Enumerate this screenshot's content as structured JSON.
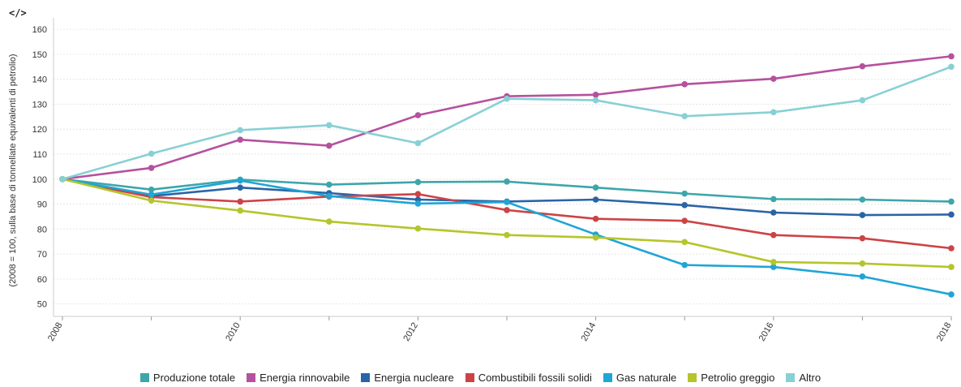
{
  "toolbar": {
    "code_icon": "</>"
  },
  "chart_data": {
    "type": "line",
    "ylabel": "(2008 = 100, sulla base di tonnellate equivalenti di petrolio)",
    "xlabel": "",
    "x": [
      2008,
      2009,
      2010,
      2011,
      2012,
      2013,
      2014,
      2015,
      2016,
      2017,
      2018
    ],
    "x_tick_labels": [
      "2008",
      "2010",
      "2012",
      "2014",
      "2016",
      "2018"
    ],
    "y_ticks": [
      50,
      60,
      70,
      80,
      90,
      100,
      110,
      120,
      130,
      140,
      150,
      160
    ],
    "ylim": [
      45,
      162
    ],
    "grid": true,
    "legend_position": "bottom",
    "series": [
      {
        "name": "Produzione totale",
        "color": "#3ea6aa",
        "values": [
          100,
          95.8,
          99.8,
          97.8,
          98.8,
          99.0,
          96.6,
          94.2,
          92.0,
          91.8,
          91.0
        ]
      },
      {
        "name": "Energia rinnovabile",
        "color": "#b5519e",
        "values": [
          100,
          104.5,
          115.8,
          113.4,
          125.6,
          133.2,
          133.8,
          138.0,
          140.2,
          145.2,
          149.2
        ]
      },
      {
        "name": "Energia nucleare",
        "color": "#2a64a6",
        "values": [
          100,
          93.2,
          96.6,
          94.4,
          91.8,
          91.0,
          91.8,
          89.6,
          86.6,
          85.6,
          85.8
        ]
      },
      {
        "name": "Combustibili fossili solidi",
        "color": "#cc4346",
        "values": [
          100,
          92.8,
          91.0,
          93.0,
          94.0,
          87.6,
          84.1,
          83.3,
          77.6,
          76.3,
          72.3
        ]
      },
      {
        "name": "Gas naturale",
        "color": "#1fa5d6",
        "values": [
          100,
          93.8,
          99.4,
          93.2,
          90.2,
          90.8,
          77.8,
          65.6,
          64.8,
          61.0,
          53.8
        ]
      },
      {
        "name": "Petrolio greggio",
        "color": "#b5c52b",
        "values": [
          100,
          91.4,
          87.4,
          83.0,
          80.2,
          77.6,
          76.6,
          74.8,
          66.8,
          66.2,
          64.8
        ]
      },
      {
        "name": "Altro",
        "color": "#88d0d4",
        "values": [
          100,
          110.2,
          119.6,
          121.6,
          114.4,
          132.2,
          131.6,
          125.2,
          126.8,
          131.6,
          145.0
        ]
      }
    ]
  }
}
